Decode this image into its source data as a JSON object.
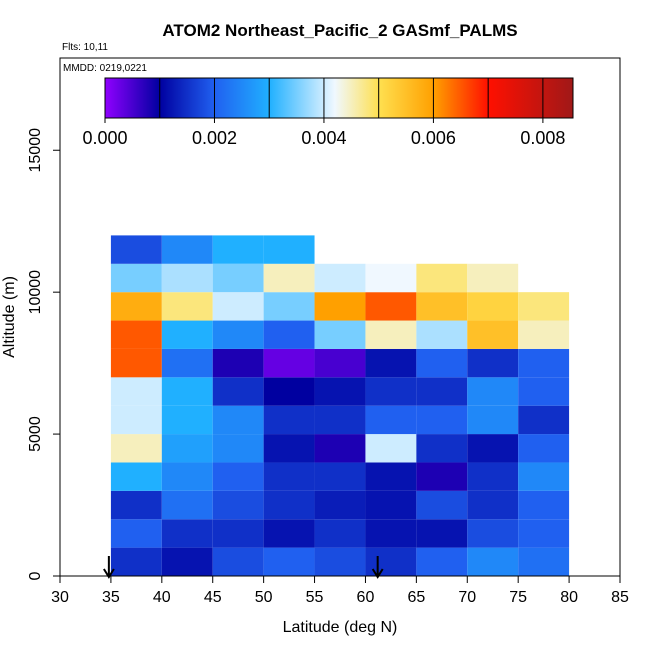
{
  "chart_data": {
    "type": "heatmap",
    "title": "ATOM2 Northeast_Pacific_2 GASmf_PALMS",
    "annotations": [
      "Flts: 10,11",
      "MMDD: 0219,0221"
    ],
    "x_label": "Latitude (deg N)",
    "y_label": "Altitude (m)",
    "xlim": [
      30,
      85
    ],
    "xticks": [
      30,
      35,
      40,
      45,
      50,
      55,
      60,
      65,
      70,
      75,
      80,
      85
    ],
    "ylim": [
      0,
      18250
    ],
    "yticks": [
      0,
      5000,
      10000,
      15000
    ],
    "x_edges": [
      35,
      40,
      45,
      50,
      55,
      60,
      65,
      70,
      75,
      80
    ],
    "y_edges": [
      0,
      1000,
      2000,
      3000,
      4000,
      5000,
      6000,
      7000,
      8000,
      9000,
      10000,
      11000,
      12000
    ],
    "values": [
      [
        0.0015,
        0.0012,
        0.0018,
        0.002,
        0.0018,
        0.0015,
        0.002,
        0.0025,
        0.0022
      ],
      [
        0.002,
        0.0015,
        0.0015,
        0.0012,
        0.0015,
        0.0012,
        0.0012,
        0.0018,
        0.002
      ],
      [
        0.0015,
        0.0022,
        0.0018,
        0.0015,
        0.0013,
        0.0012,
        0.0018,
        0.0015,
        0.002
      ],
      [
        0.003,
        0.0025,
        0.002,
        0.0015,
        0.0015,
        0.0012,
        0.0008,
        0.0015,
        0.0025
      ],
      [
        0.0045,
        0.0028,
        0.0025,
        0.0012,
        0.0008,
        0.004,
        0.0015,
        0.0012,
        0.002
      ],
      [
        0.004,
        0.003,
        0.0025,
        0.0015,
        0.0015,
        0.002,
        0.002,
        0.0025,
        0.0015
      ],
      [
        0.004,
        0.003,
        0.0015,
        0.001,
        0.0012,
        0.0015,
        0.0015,
        0.0025,
        0.002
      ],
      [
        0.0065,
        0.0022,
        0.0008,
        0.0003,
        0.0005,
        0.0012,
        0.002,
        0.0015,
        0.002
      ],
      [
        0.0065,
        0.003,
        0.0025,
        0.002,
        0.0035,
        0.0045,
        0.0038,
        0.0055,
        0.0045
      ],
      [
        0.0058,
        0.0048,
        0.004,
        0.0035,
        0.006,
        0.0065,
        0.0055,
        0.0052,
        0.0048
      ],
      [
        0.0035,
        0.0038,
        0.0035,
        0.0045,
        0.004,
        0.0042,
        0.0048,
        0.0045,
        null
      ],
      [
        0.0018,
        0.0025,
        0.003,
        0.003,
        null,
        null,
        null,
        null,
        null
      ]
    ],
    "colorbar": {
      "lim": [
        0,
        0.00855
      ],
      "ticks": [
        {
          "value": 0,
          "label": "0.000"
        },
        {
          "value": 0.002,
          "label": "0.002"
        },
        {
          "value": 0.004,
          "label": "0.004"
        },
        {
          "value": 0.006,
          "label": "0.006"
        },
        {
          "value": 0.008,
          "label": "0.008"
        }
      ],
      "levels": [
        0.001,
        0.002,
        0.003,
        0.004,
        0.005,
        0.006,
        0.007,
        0.008
      ],
      "color_stops": [
        [
          0,
          "#9000ff"
        ],
        [
          0.001,
          "#0000a0"
        ],
        [
          0.002,
          "#2060f0"
        ],
        [
          0.003,
          "#20b0ff"
        ],
        [
          0.0042,
          "#f0f8ff"
        ],
        [
          0.005,
          "#ffe050"
        ],
        [
          0.006,
          "#ffa000"
        ],
        [
          0.007,
          "#ff1000"
        ],
        [
          0.00855,
          "#a01818"
        ]
      ]
    },
    "arrows": [
      34.8,
      61.2
    ]
  }
}
